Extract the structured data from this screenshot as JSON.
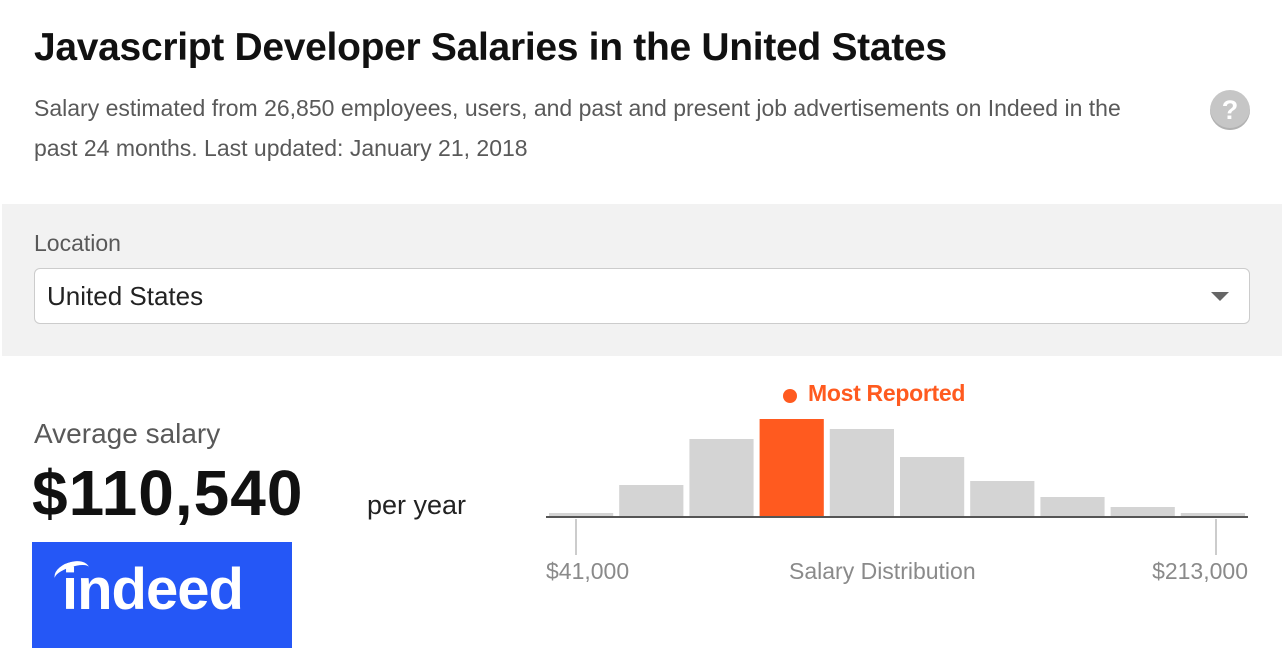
{
  "header": {
    "title": "Javascript Developer Salaries in the United States",
    "subtitle": "Salary estimated from 26,850 employees, users, and past and present job advertisements on Indeed in the past 24 months. Last updated: January 21, 2018",
    "help_icon": "question-circle-icon",
    "help_glyph": "?"
  },
  "location": {
    "label": "Location",
    "selected": "United States",
    "caret_icon": "chevron-down-icon"
  },
  "salary": {
    "label": "Average salary",
    "value": "$110,540",
    "unit": "per year"
  },
  "brand": {
    "logo_text": "indeed",
    "logo_color": "#2557f6"
  },
  "chart_data": {
    "type": "bar",
    "xlabel": "Salary Distribution",
    "tick_min": "$41,000",
    "tick_max": "$213,000",
    "highlight_label": "Most Reported",
    "highlight_index": 3,
    "values": [
      4,
      32,
      78,
      98,
      88,
      60,
      36,
      20,
      10,
      4
    ],
    "ylim": [
      0,
      100
    ],
    "colors": {
      "bar": "#d4d4d4",
      "highlight": "#ff5a1f",
      "axis": "#555555",
      "tick": "#bbbbbb"
    }
  }
}
